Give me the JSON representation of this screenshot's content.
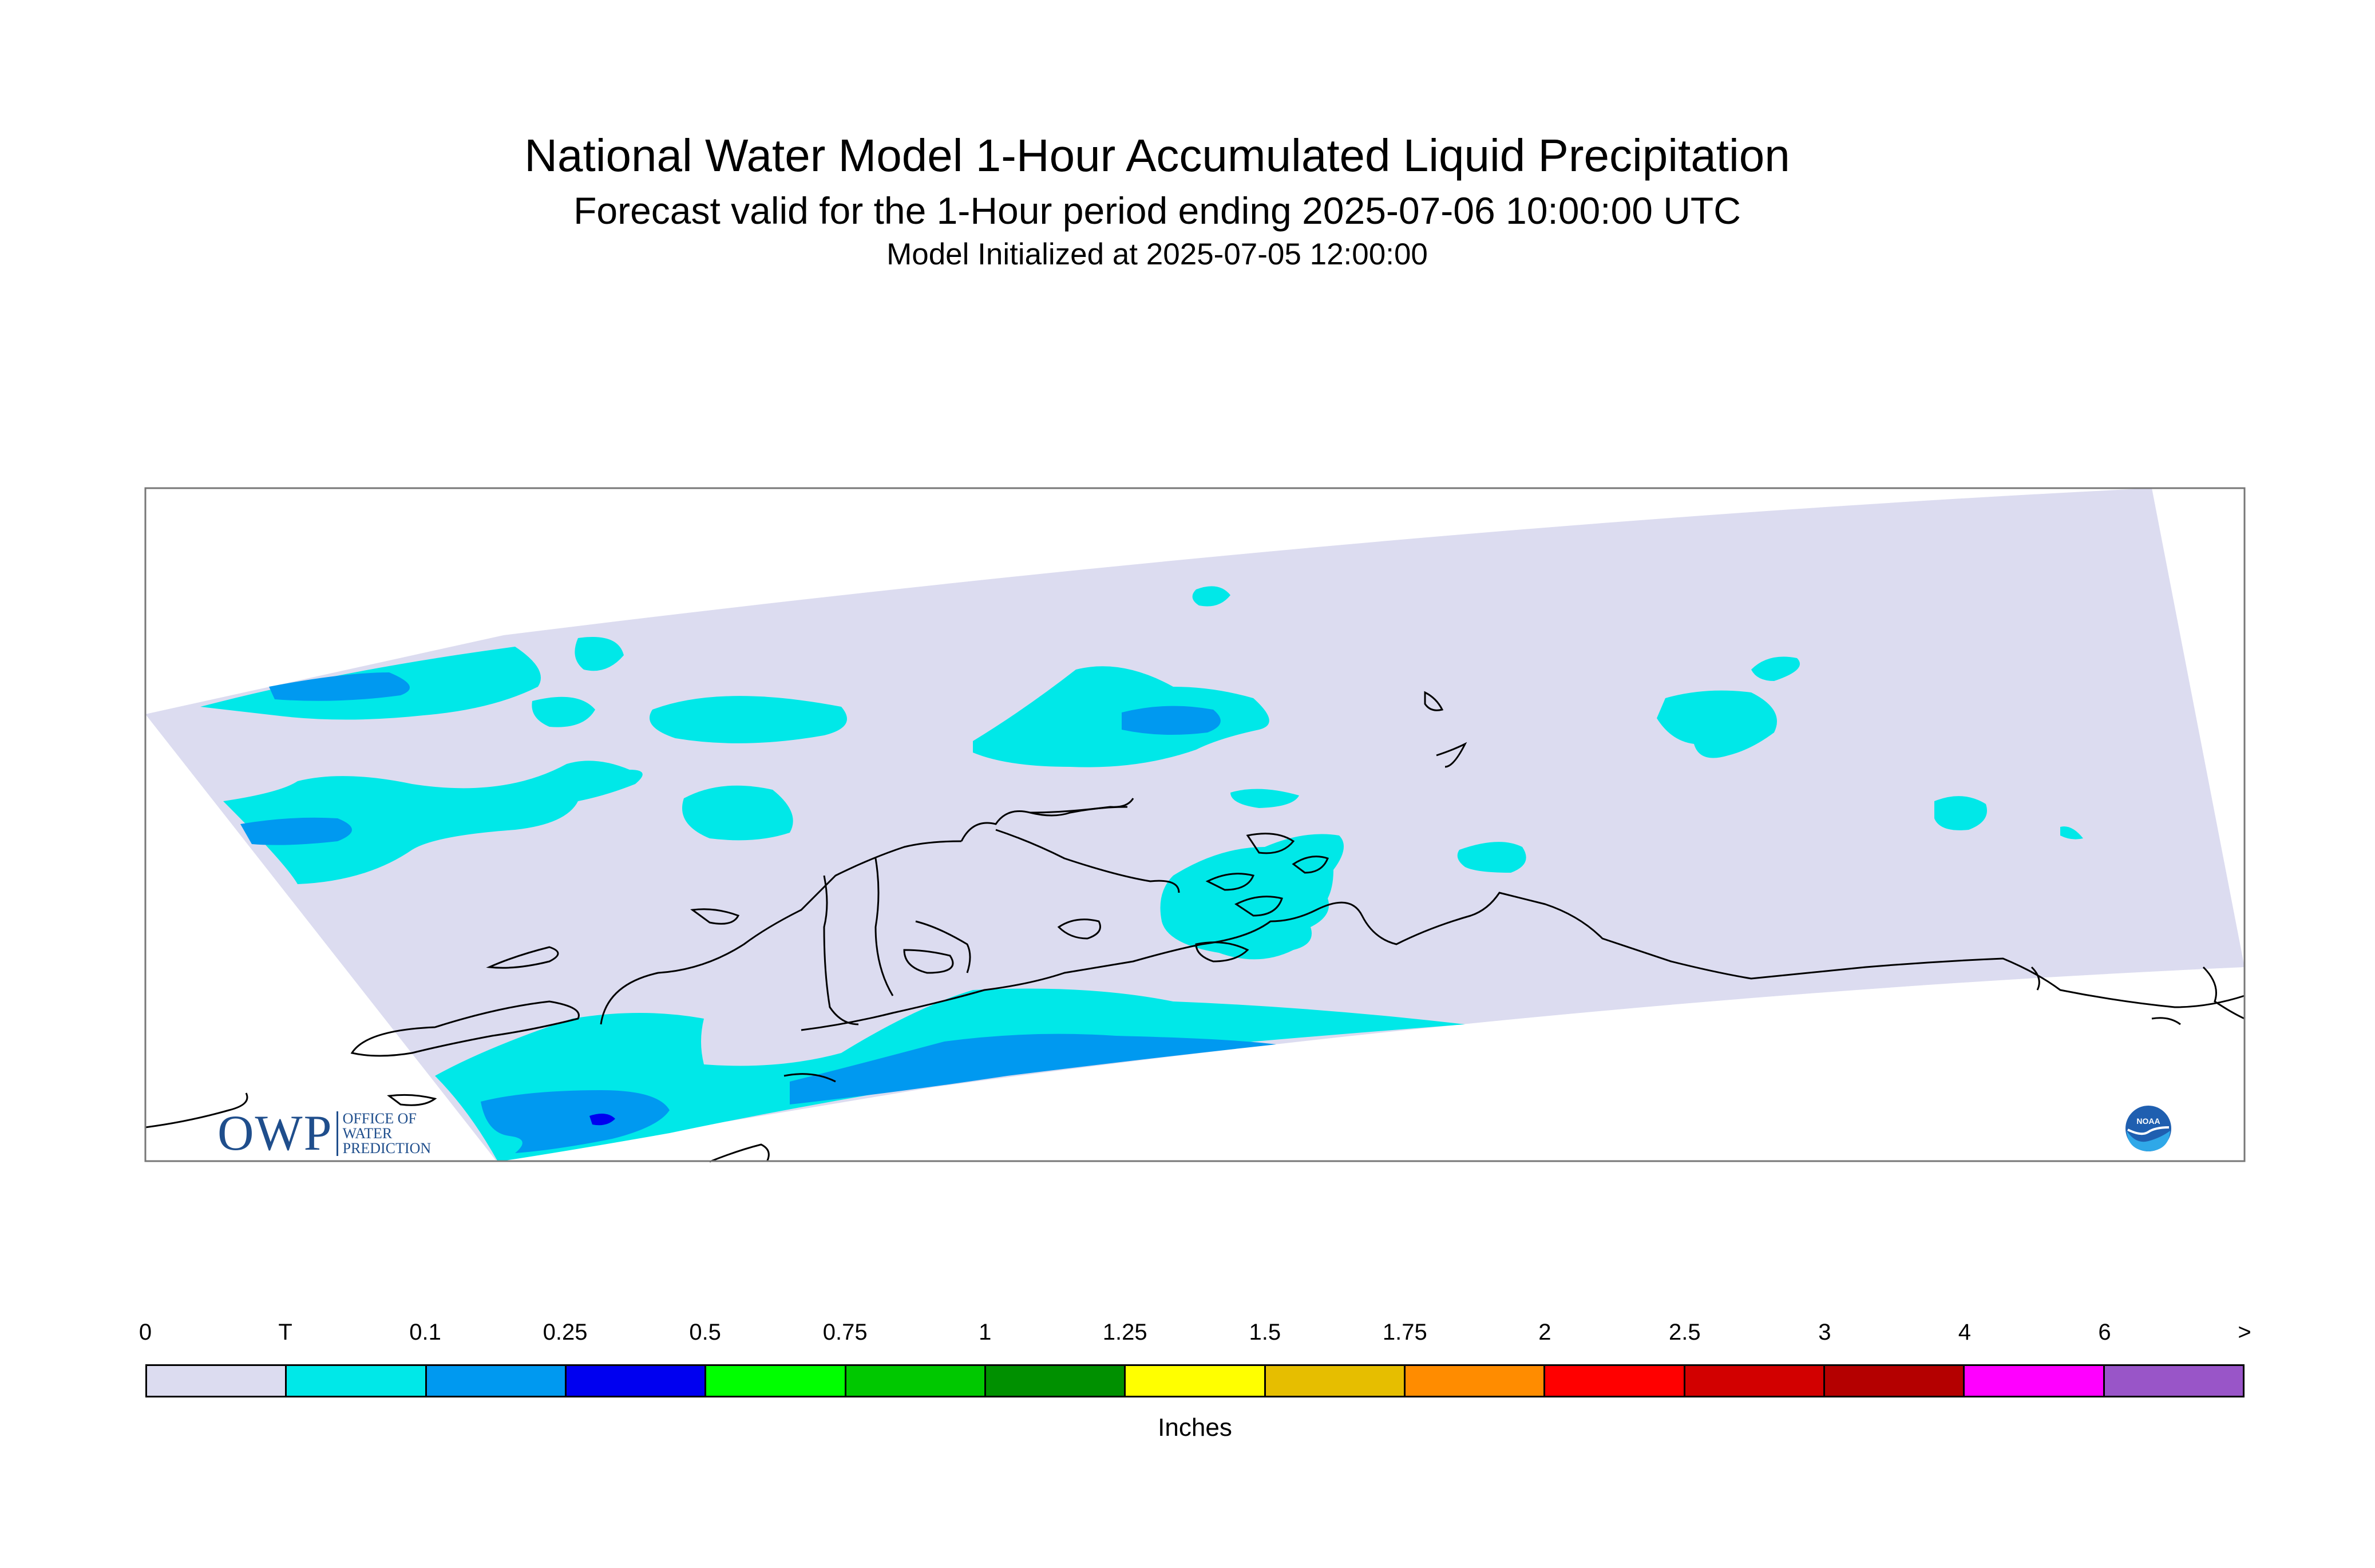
{
  "header": {
    "title": "National Water Model 1-Hour Accumulated Liquid Precipitation",
    "subtitle": "Forecast valid for the 1-Hour period ending 2025-07-06 10:00:00 UTC",
    "init": "Model Initialized at 2025-07-05 12:00:00"
  },
  "legend": {
    "ticks": [
      "0",
      "T",
      "0.1",
      "0.25",
      "0.5",
      "0.75",
      "1",
      "1.25",
      "1.5",
      "1.75",
      "2",
      "2.5",
      "3",
      "4",
      "6",
      ">"
    ],
    "colors": [
      "#dcdcf0",
      "#00e8e8",
      "#0099f0",
      "#0000f0",
      "#00ff00",
      "#00c800",
      "#009000",
      "#ffff00",
      "#e6be00",
      "#ff8c00",
      "#ff0000",
      "#d20000",
      "#b40000",
      "#ff00ff",
      "#9955c8"
    ],
    "units": "Inches"
  },
  "logos": {
    "owp_mark": "OWP",
    "owp_text": [
      "Office of",
      "Water",
      "Prediction"
    ],
    "noaa": "NOAA"
  },
  "map": {
    "land_outline_color": "#000000",
    "domain_fill": "#dcdcf0",
    "trace_fill": "#00e8e8",
    "light_fill": "#0099f0",
    "moderate_fill": "#0000f0"
  }
}
